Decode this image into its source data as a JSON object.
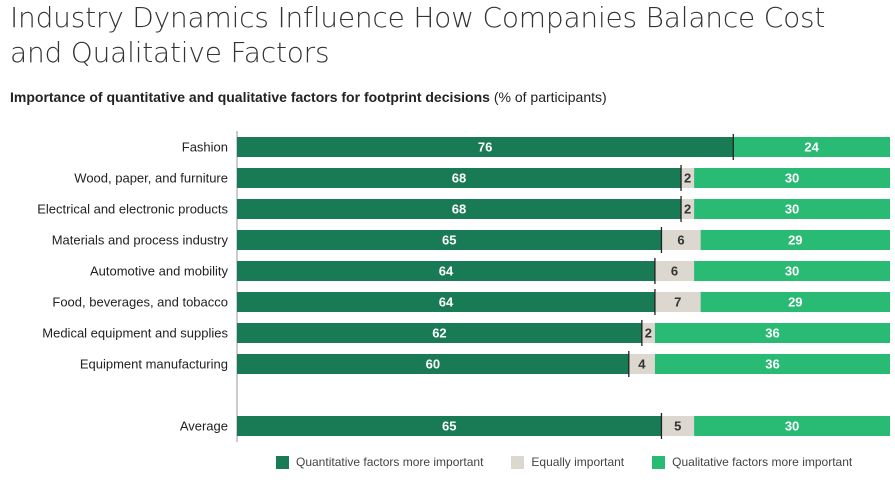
{
  "title": "Industry Dynamics Influence How Companies Balance Cost and Qualitative Factors",
  "subtitle_bold": "Importance of quantitative and qualitative factors for footprint decisions",
  "subtitle_light": "(% of participants)",
  "colors": {
    "quantitative": "#197a56",
    "equal": "#dcd7cf",
    "qualitative": "#29ba74",
    "divider": "#222222",
    "axis": "#999999"
  },
  "chart_data": {
    "type": "bar",
    "orientation": "horizontal",
    "stacked": true,
    "categories": [
      "Fashion",
      "Wood, paper, and furniture",
      "Electrical and electronic products",
      "Materials and process industry",
      "Automotive and mobility",
      "Food, beverages, and tobacco",
      "Medical equipment and supplies",
      "Equipment manufacturing",
      "Average"
    ],
    "series": [
      {
        "name": "Quantitative factors more important",
        "values": [
          76,
          68,
          68,
          65,
          64,
          64,
          62,
          60,
          65
        ]
      },
      {
        "name": "Equally important",
        "values": [
          0,
          2,
          2,
          6,
          6,
          7,
          2,
          4,
          5
        ]
      },
      {
        "name": "Qualitative factors more important",
        "values": [
          24,
          30,
          30,
          29,
          30,
          29,
          36,
          36,
          30
        ]
      }
    ],
    "xlim": [
      0,
      100
    ],
    "legend": "bottom",
    "grid": false
  }
}
